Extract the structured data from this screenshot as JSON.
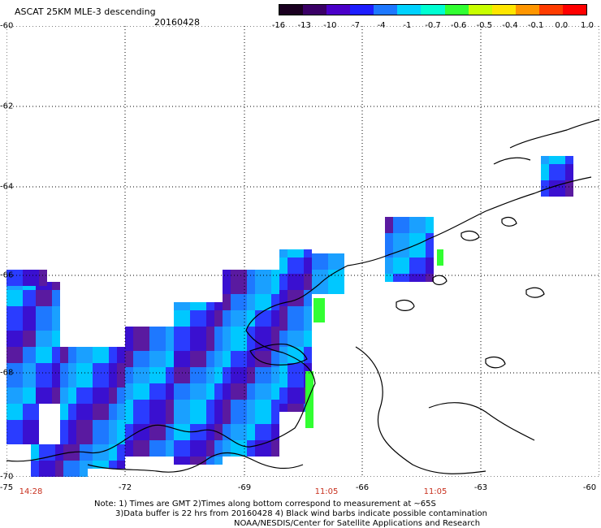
{
  "header": {
    "title": "ASCAT 25KM MLE-3 descending",
    "date": "20160428"
  },
  "colorbar": {
    "labels": [
      "-16",
      "-13",
      "-10",
      "-7",
      "-4",
      "-1",
      "-0.7",
      "-0.6",
      "-0.5",
      "-0.4",
      "-0.1",
      "0.0",
      "1.0"
    ],
    "colors": [
      "#1a0020",
      "#3a0066",
      "#4a00c8",
      "#1e1eff",
      "#1e78ff",
      "#00d2ff",
      "#00ffd2",
      "#32ff32",
      "#c8ff00",
      "#ffe600",
      "#ff9600",
      "#ff3c00",
      "#ff0000"
    ]
  },
  "axes": {
    "lat_labels": [
      "-60",
      "-62",
      "-64",
      "-66",
      "-68",
      "-70"
    ],
    "lon_labels": [
      "-75",
      "-72",
      "-69",
      "-66",
      "-63",
      "-60"
    ]
  },
  "times": {
    "left": "14:28",
    "middle": "11:05",
    "right": "11:05"
  },
  "notes": {
    "line1": "Note: 1) Times are GMT 2)Times along bottom correspond to measurement at ~65S",
    "line2": "3)Data buffer is 22 hrs from 20160428 4) Black wind barbs indicate possible contamination",
    "line3": "NOAA/NESDIS/Center for Satellite Applications and Research"
  },
  "map_data": {
    "lon_range": [
      -75,
      -60
    ],
    "lat_range": [
      -70,
      -60
    ],
    "cell_colors": [
      "#1e78ff",
      "#1aa0ff",
      "#00c8ff",
      "#2a3cff",
      "#3a10d0",
      "#5a1aa0"
    ]
  }
}
